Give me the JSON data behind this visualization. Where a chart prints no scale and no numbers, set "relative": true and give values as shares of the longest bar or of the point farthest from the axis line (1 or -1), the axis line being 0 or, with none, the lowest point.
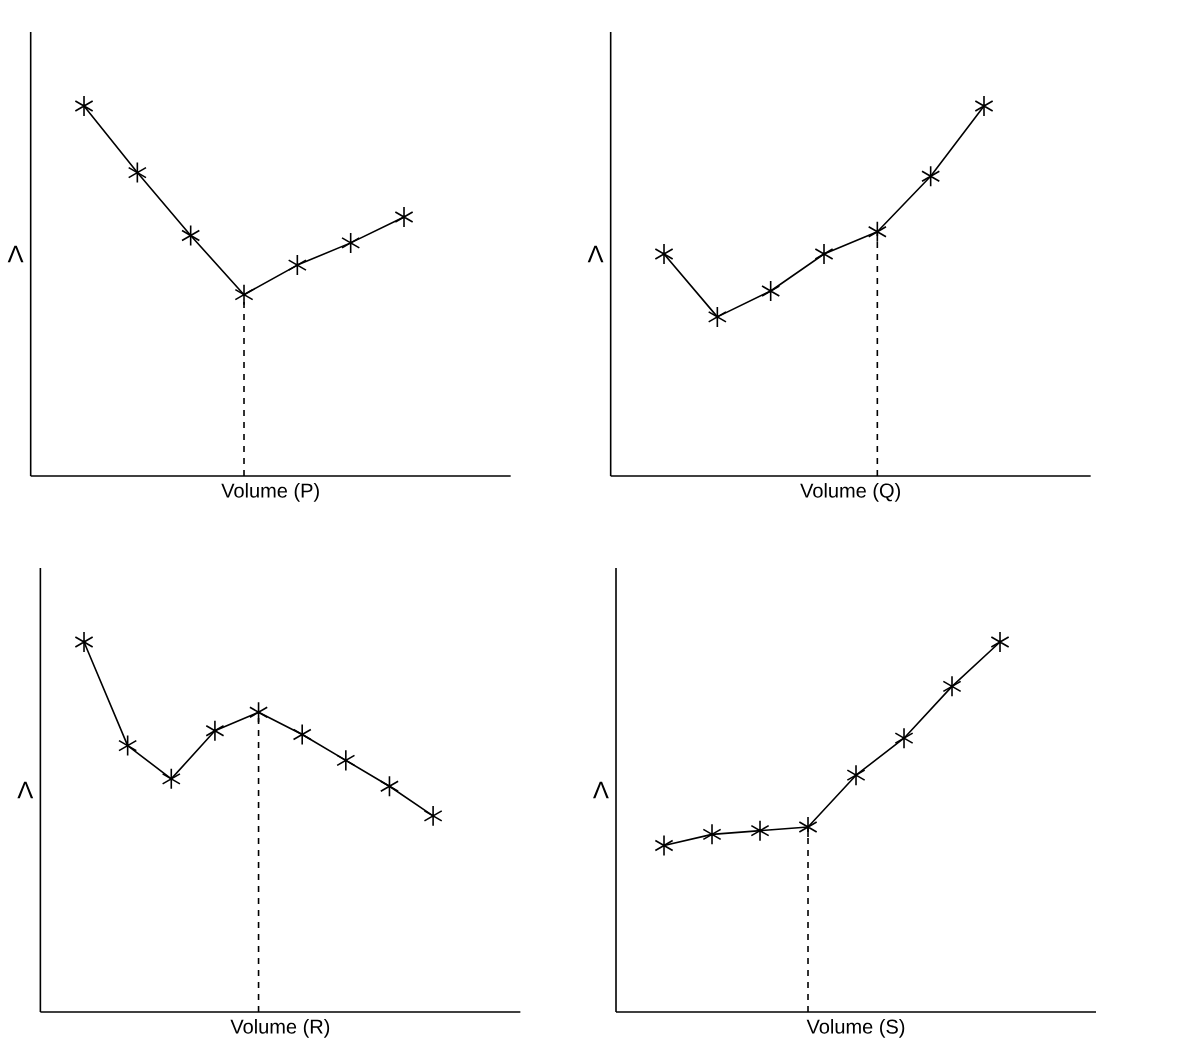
{
  "chart_data": [
    {
      "type": "line",
      "xlabel": "Volume (P)",
      "ylabel": "Λ",
      "relative": true,
      "marker": "cross",
      "line_style": "solid",
      "categories": [
        null,
        null,
        null,
        null,
        null,
        null,
        null
      ],
      "series": [
        {
          "color": "#000000",
          "values": [
            1,
            0.82,
            0.65,
            0.49,
            0.57,
            0.63,
            0.7
          ]
        }
      ]
    },
    {
      "type": "line",
      "xlabel": "Volume (Q)",
      "ylabel": "Λ",
      "relative": true,
      "marker": "cross",
      "line_style": "solid",
      "categories": [
        null,
        null,
        null,
        null,
        null,
        null,
        null
      ],
      "series": [
        {
          "color": "#000000",
          "values": [
            0.6,
            0.43,
            0.5,
            0.6,
            0.66,
            0.81,
            1
          ]
        }
      ]
    },
    {
      "type": "line",
      "xlabel": "Volume (R)",
      "ylabel": "Λ",
      "relative": true,
      "marker": "cross",
      "line_style": "solid",
      "categories": [
        null,
        null,
        null,
        null,
        null,
        null,
        null,
        null,
        null
      ],
      "series": [
        {
          "color": "#000000",
          "values": [
            1,
            0.72,
            0.63,
            0.76,
            0.81,
            0.75,
            0.68,
            0.61,
            0.53
          ]
        }
      ]
    },
    {
      "type": "line",
      "xlabel": "Volume (S)",
      "ylabel": "Λ",
      "relative": true,
      "marker": "cross",
      "line_style": "solid",
      "categories": [
        null,
        null,
        null,
        null,
        null,
        null,
        null,
        null
      ],
      "series": [
        {
          "color": "#000000",
          "values": [
            0.45,
            0.48,
            0.49,
            0.5,
            0.64,
            0.74,
            0.88,
            1
          ]
        }
      ]
    }
  ]
}
